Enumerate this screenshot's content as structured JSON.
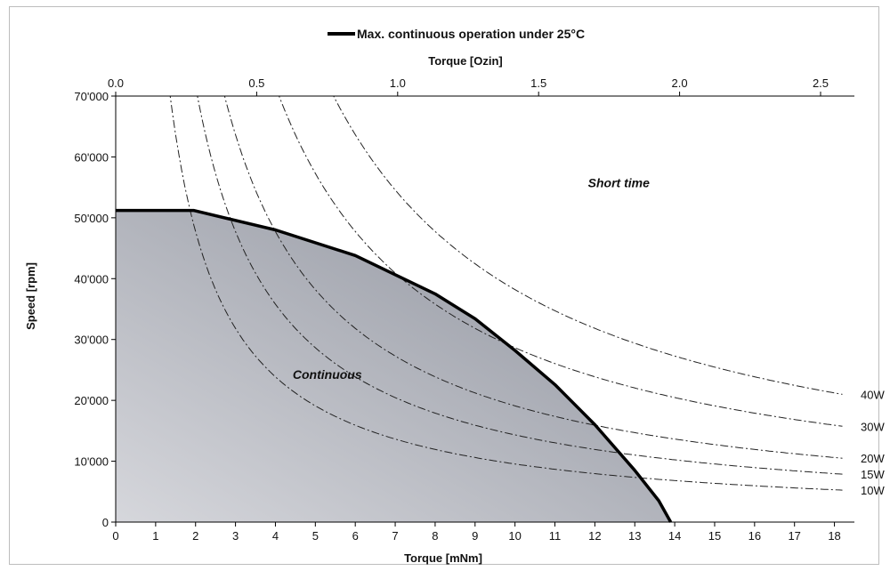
{
  "chart_data": {
    "type": "line",
    "legend": {
      "label": "Max. continuous operation under 25°C",
      "color": "#000000",
      "placement": "top-center"
    },
    "x_axis": {
      "label": "Torque [mNm]",
      "range": [
        0,
        18.5
      ],
      "ticks": [
        "0",
        "1",
        "2",
        "3",
        "4",
        "5",
        "6",
        "7",
        "8",
        "9",
        "10",
        "11",
        "12",
        "13",
        "14",
        "15",
        "16",
        "17",
        "18"
      ]
    },
    "x2_axis": {
      "label": "Torque [Ozin]",
      "range": [
        0,
        2.62
      ],
      "ticks": [
        "0.0",
        "0.5",
        "1.0",
        "1.5",
        "2.0",
        "2.5"
      ]
    },
    "y_axis": {
      "label": "Speed [rpm]",
      "range": [
        0,
        70000
      ],
      "ticks": [
        "0",
        "10'000",
        "20'000",
        "30'000",
        "40'000",
        "50'000",
        "60'000",
        "70'000"
      ]
    },
    "continuous_limit": {
      "color": "#000000",
      "points": [
        [
          0,
          51200
        ],
        [
          1.95,
          51200
        ],
        [
          4,
          48000
        ],
        [
          6,
          43800
        ],
        [
          8,
          37500
        ],
        [
          9,
          33400
        ],
        [
          10,
          28200
        ],
        [
          11,
          22600
        ],
        [
          12,
          16000
        ],
        [
          13,
          8500
        ],
        [
          13.6,
          3500
        ],
        [
          13.9,
          0
        ]
      ]
    },
    "regions": [
      {
        "label": "Continuous",
        "x": 5.3,
        "y": 23500
      },
      {
        "label": "Short time",
        "x": 12.6,
        "y": 55000
      }
    ],
    "fill_gradient": {
      "from": "#d6d7dc",
      "to": "#8d919c"
    },
    "series": [
      {
        "name": "10W",
        "watts": 10,
        "line_style": "dash-dot"
      },
      {
        "name": "15W",
        "watts": 15,
        "line_style": "dash-dot"
      },
      {
        "name": "20W",
        "watts": 20,
        "line_style": "dash-dot"
      },
      {
        "name": "30W",
        "watts": 30,
        "line_style": "dash-dot"
      },
      {
        "name": "40W",
        "watts": 40,
        "line_style": "dash-dot"
      }
    ],
    "grid": false
  }
}
